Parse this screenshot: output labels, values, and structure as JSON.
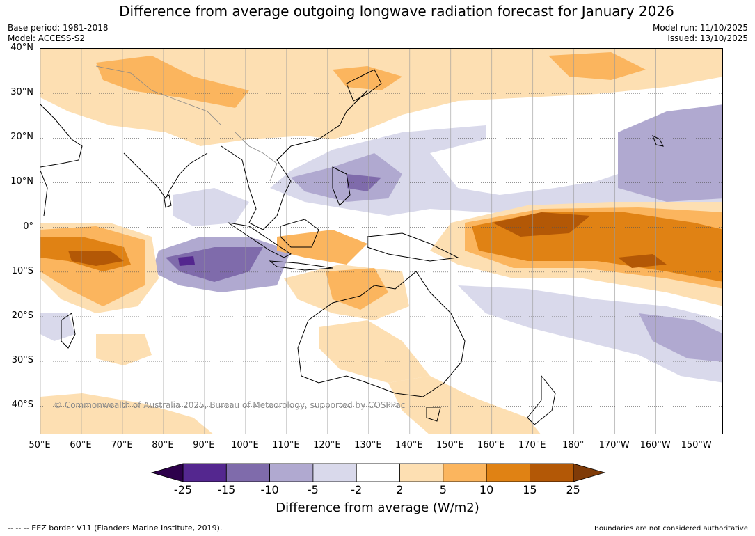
{
  "title": "Difference from average outgoing longwave radiation forecast for January 2026",
  "meta": {
    "base_period": "Base period: 1981-2018",
    "model": "Model: ACCESS-S2",
    "model_run": "Model run: 11/10/2025",
    "issued": "Issued: 13/10/2025"
  },
  "map": {
    "lat_ticks": [
      "40°N",
      "30°N",
      "20°N",
      "10°N",
      "0°",
      "10°S",
      "20°S",
      "30°S",
      "40°S"
    ],
    "lat_values": [
      40,
      30,
      20,
      10,
      0,
      -10,
      -20,
      -30,
      -40
    ],
    "lon_ticks": [
      "50°E",
      "60°E",
      "70°E",
      "80°E",
      "90°E",
      "100°E",
      "110°E",
      "120°E",
      "130°E",
      "140°E",
      "150°E",
      "160°E",
      "170°E",
      "180°",
      "170°W",
      "160°W",
      "150°W"
    ],
    "lon_values": [
      50,
      60,
      70,
      80,
      90,
      100,
      110,
      120,
      130,
      140,
      150,
      160,
      170,
      180,
      190,
      200,
      210
    ],
    "extent": {
      "lon_min": 50,
      "lon_max": 216.5,
      "lat_min": -46.5,
      "lat_max": 40
    },
    "copyright": "© Commonwealth of Australia 2025, Bureau of Meteorology, supported by COSPPac"
  },
  "colorbar": {
    "labels": [
      "-25",
      "-15",
      "-10",
      "-5",
      "-2",
      "2",
      "5",
      "10",
      "15",
      "25"
    ],
    "colors": [
      "#54278f",
      "#7f6bab",
      "#b0a9d0",
      "#d9d9eb",
      "#ffffff",
      "#fddfb2",
      "#fbb55e",
      "#e08214",
      "#b35806"
    ],
    "extend_low_color": "#2d004b",
    "extend_high_color": "#7f3b08",
    "title": "Difference from average (W/m2)"
  },
  "footer": {
    "eez": "--  --  -- EEZ border V11 (Flanders Marine Institute, 2019).",
    "disclaimer": "Boundaries are not considered authoritative"
  }
}
